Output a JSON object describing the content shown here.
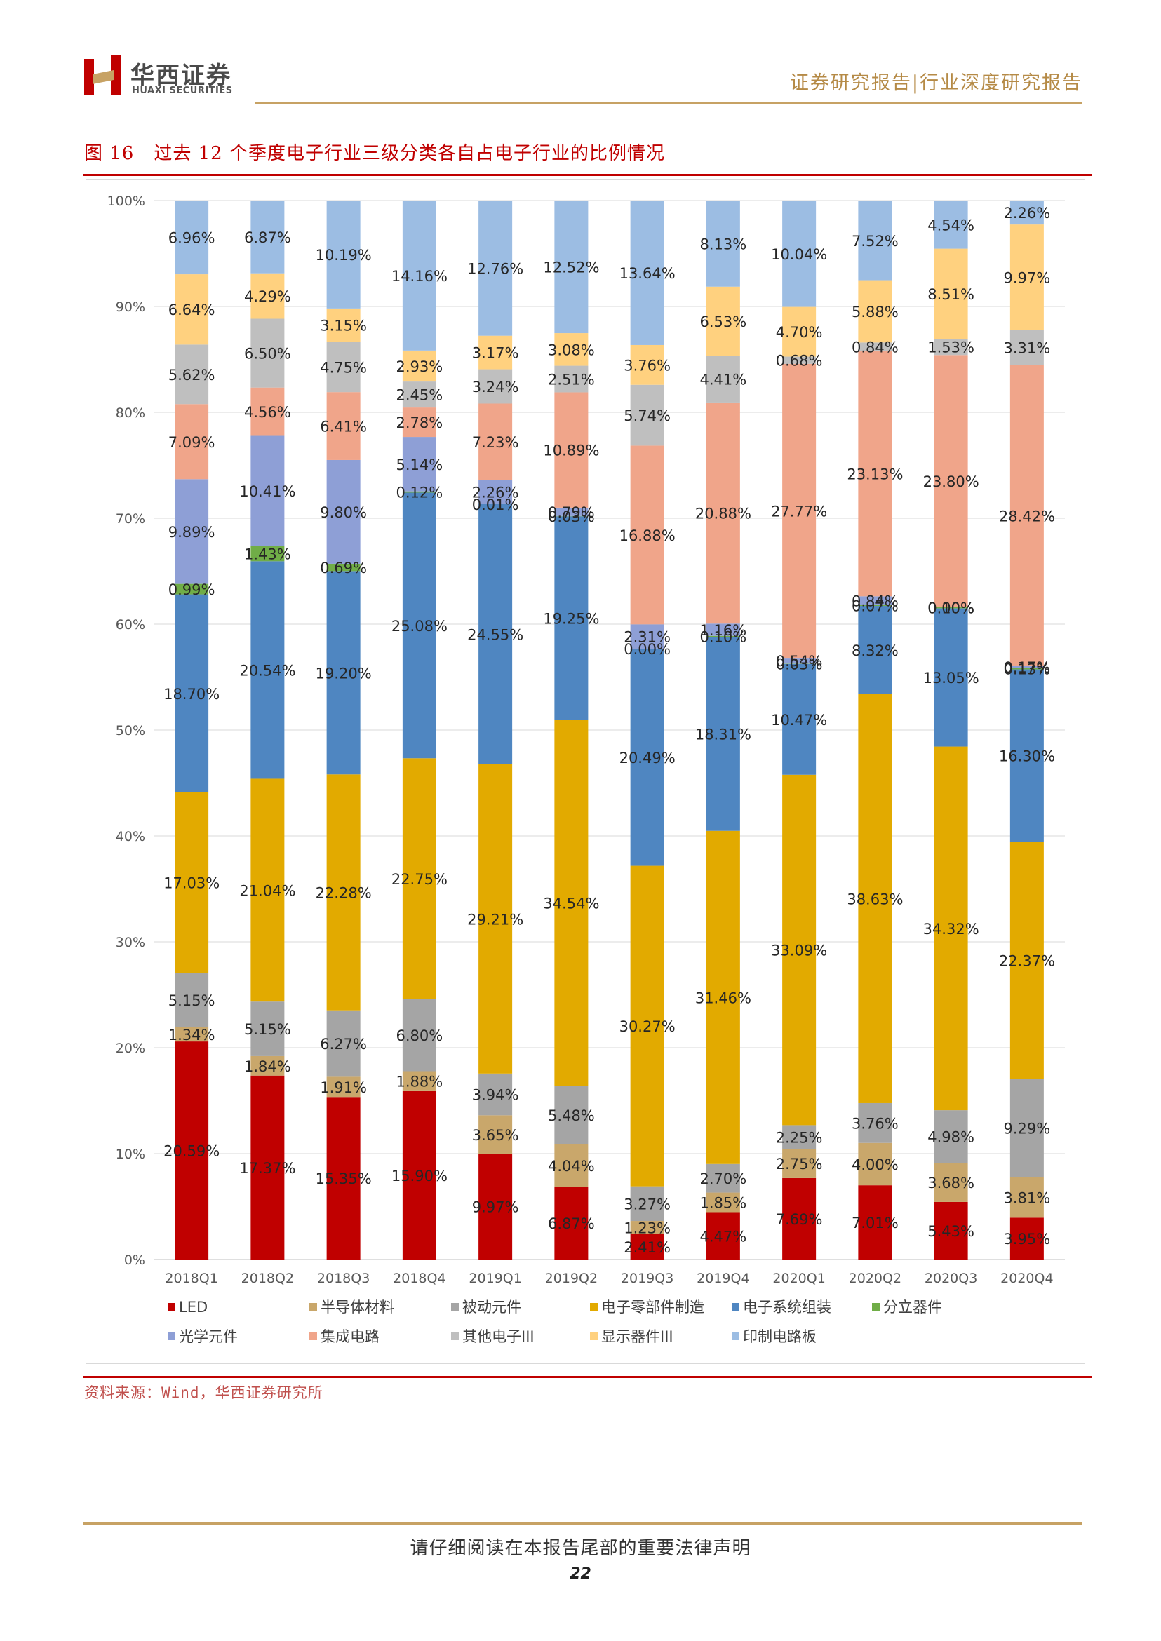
{
  "header": {
    "logo_cn": "华西证券",
    "logo_en": "HUAXI SECURITIES",
    "report_type": "证券研究报告|行业深度研究报告"
  },
  "figure": {
    "number": "图 16",
    "title": "过去 12 个季度电子行业三级分类各自占电子行业的比例情况"
  },
  "source": "资料来源：Wind，华西证券研究所",
  "footer": {
    "disclaimer": "请仔细阅读在本报告尾部的重要法律声明",
    "page_number": "22"
  },
  "chart_data": {
    "type": "bar",
    "stacked": true,
    "percent_stacked": true,
    "categories": [
      "2018Q1",
      "2018Q2",
      "2018Q3",
      "2018Q4",
      "2019Q1",
      "2019Q2",
      "2019Q3",
      "2019Q4",
      "2020Q1",
      "2020Q2",
      "2020Q3",
      "2020Q4"
    ],
    "ylim": [
      0,
      100
    ],
    "yticks": [
      "0%",
      "10%",
      "20%",
      "30%",
      "40%",
      "50%",
      "60%",
      "70%",
      "80%",
      "90%",
      "100%"
    ],
    "grid": true,
    "legend_position": "bottom",
    "series": [
      {
        "name": "LED",
        "color": "#c00000",
        "values": [
          20.59,
          17.37,
          15.35,
          15.9,
          9.97,
          6.87,
          2.41,
          4.47,
          7.69,
          7.01,
          5.43,
          3.95
        ]
      },
      {
        "name": "半导体材料",
        "color": "#c9a76b",
        "values": [
          1.34,
          1.84,
          1.91,
          1.88,
          3.65,
          4.04,
          1.23,
          1.85,
          2.75,
          4.0,
          3.68,
          3.81
        ]
      },
      {
        "name": "被动元件",
        "color": "#a5a5a5",
        "values": [
          5.15,
          5.15,
          6.27,
          6.8,
          3.94,
          5.48,
          3.27,
          2.7,
          2.25,
          3.76,
          4.98,
          9.29
        ]
      },
      {
        "name": "电子零部件制造",
        "color": "#e2aa00",
        "values": [
          17.03,
          21.04,
          22.28,
          22.75,
          29.21,
          34.54,
          30.27,
          31.46,
          33.09,
          38.63,
          34.32,
          22.37
        ]
      },
      {
        "name": "电子系统组装",
        "color": "#4f86c1",
        "values": [
          18.7,
          20.54,
          19.2,
          25.08,
          24.55,
          19.25,
          20.49,
          18.31,
          10.47,
          8.32,
          13.05,
          16.3
        ]
      },
      {
        "name": "分立器件",
        "color": "#70ad47",
        "values": [
          0.99,
          1.43,
          0.69,
          0.12,
          0.01,
          0.03,
          0.0,
          0.1,
          0.03,
          0.07,
          0.1,
          0.13
        ]
      },
      {
        "name": "光学元件",
        "color": "#8e9fd6",
        "values": [
          9.89,
          10.41,
          9.8,
          5.14,
          2.26,
          0.79,
          2.31,
          1.16,
          0.54,
          0.84,
          0.0,
          0.17
        ]
      },
      {
        "name": "集成电路",
        "color": "#f0a58a",
        "values": [
          7.09,
          4.56,
          6.41,
          2.78,
          7.23,
          10.89,
          16.88,
          20.88,
          27.77,
          23.13,
          23.8,
          28.42
        ]
      },
      {
        "name": "其他电子III",
        "color": "#bfbfbf",
        "values": [
          5.62,
          6.5,
          4.75,
          2.45,
          3.24,
          2.51,
          5.74,
          4.41,
          0.68,
          0.84,
          1.53,
          3.31
        ]
      },
      {
        "name": "显示器件III",
        "color": "#ffd17f",
        "values": [
          6.64,
          4.29,
          3.15,
          2.93,
          3.17,
          3.08,
          3.76,
          6.53,
          4.7,
          5.88,
          8.51,
          9.97
        ]
      },
      {
        "name": "印制电路板",
        "color": "#9cbde3",
        "values": [
          6.96,
          6.87,
          10.19,
          14.16,
          12.76,
          12.52,
          13.64,
          8.13,
          10.04,
          7.52,
          4.54,
          2.26
        ]
      }
    ]
  }
}
